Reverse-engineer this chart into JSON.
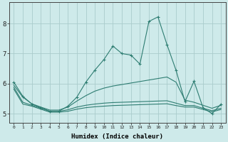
{
  "xlabel": "Humidex (Indice chaleur)",
  "ylabel": "",
  "xlim": [
    -0.5,
    23.5
  ],
  "ylim": [
    4.7,
    8.7
  ],
  "xticks": [
    0,
    1,
    2,
    3,
    4,
    5,
    6,
    7,
    8,
    9,
    10,
    11,
    12,
    13,
    14,
    15,
    16,
    17,
    18,
    19,
    20,
    21,
    22,
    23
  ],
  "yticks": [
    5,
    6,
    7,
    8
  ],
  "background_color": "#ceeaea",
  "grid_color": "#aacccc",
  "line_color": "#2e7d72",
  "series": [
    {
      "x": [
        0,
        1,
        2,
        3,
        4,
        5,
        6,
        7,
        8,
        9,
        10,
        11,
        12,
        13,
        14,
        15,
        16,
        17,
        18,
        19,
        20,
        21,
        22,
        23
      ],
      "y": [
        6.05,
        5.58,
        5.32,
        5.2,
        5.08,
        5.08,
        5.25,
        5.55,
        6.05,
        6.45,
        6.8,
        7.25,
        7.0,
        6.95,
        6.65,
        8.07,
        8.22,
        7.3,
        6.45,
        5.4,
        6.08,
        5.2,
        5.0,
        5.32
      ],
      "marker": "+"
    },
    {
      "x": [
        0,
        1,
        2,
        3,
        4,
        5,
        6,
        7,
        8,
        9,
        10,
        11,
        12,
        13,
        14,
        15,
        16,
        17,
        18,
        19,
        20,
        21,
        22,
        23
      ],
      "y": [
        5.95,
        5.55,
        5.33,
        5.22,
        5.12,
        5.12,
        5.22,
        5.42,
        5.6,
        5.75,
        5.85,
        5.92,
        5.97,
        6.02,
        6.07,
        6.12,
        6.17,
        6.22,
        6.05,
        5.45,
        5.38,
        5.28,
        5.18,
        5.28
      ],
      "marker": null
    },
    {
      "x": [
        0,
        1,
        2,
        3,
        4,
        5,
        6,
        7,
        8,
        9,
        10,
        11,
        12,
        13,
        14,
        15,
        16,
        17,
        18,
        19,
        20,
        21,
        22,
        23
      ],
      "y": [
        5.88,
        5.38,
        5.28,
        5.18,
        5.08,
        5.08,
        5.13,
        5.22,
        5.28,
        5.32,
        5.35,
        5.37,
        5.38,
        5.39,
        5.4,
        5.41,
        5.42,
        5.43,
        5.35,
        5.27,
        5.27,
        5.18,
        5.1,
        5.18
      ],
      "marker": null
    },
    {
      "x": [
        0,
        1,
        2,
        3,
        4,
        5,
        6,
        7,
        8,
        9,
        10,
        11,
        12,
        13,
        14,
        15,
        16,
        17,
        18,
        19,
        20,
        21,
        22,
        23
      ],
      "y": [
        5.82,
        5.32,
        5.25,
        5.15,
        5.05,
        5.05,
        5.08,
        5.15,
        5.2,
        5.23,
        5.25,
        5.27,
        5.28,
        5.29,
        5.3,
        5.31,
        5.32,
        5.33,
        5.27,
        5.22,
        5.22,
        5.14,
        5.06,
        5.14
      ],
      "marker": null
    }
  ]
}
